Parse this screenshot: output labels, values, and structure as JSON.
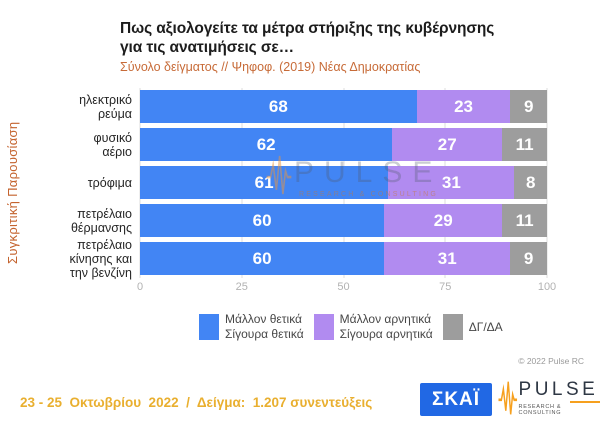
{
  "header": {
    "title_line1": "Πως αξιολογείτε τα μέτρα στήριξης της κυβέρνησης",
    "title_line2": "για τις ανατιμήσεις σε…",
    "subtitle": "Σύνολο δείγματος // Ψηφοφ. (2019)  Νέας Δημοκρατίας"
  },
  "side_label": "Συγκριτική Παρουσίαση",
  "chart_data": {
    "type": "bar",
    "orientation": "horizontal",
    "stacked": true,
    "title": "Πως αξιολογείτε τα μέτρα στήριξης της κυβέρνησης για τις ανατιμήσεις σε…",
    "categories": [
      "ηλεκτρικό\nρεύμα",
      "φυσικό\nαέριο",
      "τρόφιμα",
      "πετρέλαιο\nθέρμανσης",
      "πετρέλαιο\nκίνησης και\nτην βενζίνη"
    ],
    "series": [
      {
        "key": "positive",
        "name": "Μάλλον θετικά\nΣίγουρα θετικά",
        "color": "#4285f4",
        "values": [
          68,
          62,
          61,
          60,
          60
        ]
      },
      {
        "key": "negative",
        "name": "Μάλλον αρνητικά\nΣίγουρα αρνητικά",
        "color": "#b18bf0",
        "values": [
          23,
          27,
          31,
          29,
          31
        ]
      },
      {
        "key": "dk-na",
        "name": "ΔΓ/ΔΑ",
        "color": "#9d9d9d",
        "values": [
          9,
          11,
          8,
          11,
          9
        ]
      }
    ],
    "x_ticks": [
      0,
      25,
      50,
      75,
      100
    ],
    "xlim": [
      0,
      100
    ],
    "grid": true,
    "legend_position": "bottom",
    "value_labels": "inside-center"
  },
  "watermark": {
    "brand": "PULSE",
    "tagline": "RESEARCH & CONSULTING"
  },
  "copyright": "© 2022 Pulse RC",
  "footer": {
    "note": "23 - 25  Οκτωβρίου  2022  /  Δείγμα:  1.207 συνεντεύξεις",
    "skai_logo": "ΣΚΑΪ",
    "pulse_brand": "PULSE",
    "pulse_tagline": "RESEARCH & CONSULTING"
  },
  "colors": {
    "positive_blue": "#4285f4",
    "negative_purple": "#b18bf0",
    "dk_na_gray": "#9d9d9d",
    "subtitle_orange": "#c76b38",
    "side_label_orange": "#c4632e",
    "footer_gold": "#e9af2f",
    "skai_blue": "#2168e4",
    "pulse_orange": "#f6a01e"
  }
}
